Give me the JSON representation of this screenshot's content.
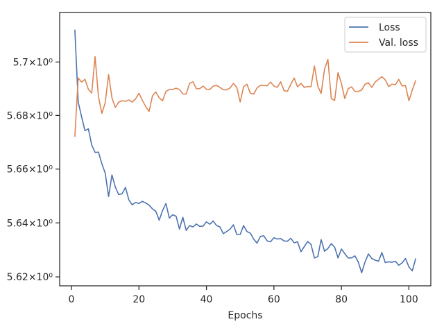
{
  "chart_data": {
    "type": "line",
    "title": "",
    "xlabel": "Epochs",
    "ylabel": "",
    "xlim": [
      -3.5,
      106.5
    ],
    "ylim": [
      5.6167,
      5.7186
    ],
    "yscale": "log",
    "grid": false,
    "legend_position": "top-right",
    "x_ticks": [
      0,
      20,
      40,
      60,
      80,
      100
    ],
    "x_tick_labels": [
      "0",
      "20",
      "40",
      "60",
      "80",
      "100"
    ],
    "y_ticks": [
      5.62,
      5.64,
      5.66,
      5.68,
      5.7
    ],
    "y_tick_labels": [
      "5.62×10⁰",
      "5.64×10⁰",
      "5.66×10⁰",
      "5.68×10⁰",
      "5.7×10⁰"
    ],
    "series": [
      {
        "name": "Loss",
        "color": "#4c72b0",
        "values": [
          5.712,
          5.685,
          5.6795,
          5.6743,
          5.675,
          5.669,
          5.6662,
          5.6663,
          5.662,
          5.6585,
          5.6498,
          5.6578,
          5.6533,
          5.6505,
          5.6508,
          5.6532,
          5.6486,
          5.6467,
          5.6476,
          5.6472,
          5.648,
          5.6474,
          5.6466,
          5.6452,
          5.6443,
          5.641,
          5.6446,
          5.6472,
          5.6418,
          5.643,
          5.6425,
          5.6377,
          5.6421,
          5.6372,
          5.639,
          5.6385,
          5.6396,
          5.6387,
          5.6388,
          5.6404,
          5.6395,
          5.6407,
          5.639,
          5.6385,
          5.636,
          5.6368,
          5.6377,
          5.6393,
          5.6357,
          5.6357,
          5.639,
          5.6368,
          5.6362,
          5.634,
          5.6325,
          5.635,
          5.6352,
          5.6333,
          5.633,
          5.6345,
          5.634,
          5.6342,
          5.6333,
          5.6332,
          5.6343,
          5.6326,
          5.633,
          5.6293,
          5.6312,
          5.6331,
          5.632,
          5.627,
          5.6275,
          5.6338,
          5.6295,
          5.6305,
          5.6323,
          5.631,
          5.627,
          5.6303,
          5.6286,
          5.627,
          5.627,
          5.6278,
          5.6255,
          5.6215,
          5.6255,
          5.6285,
          5.6268,
          5.6262,
          5.6258,
          5.629,
          5.6253,
          5.6256,
          5.6254,
          5.6258,
          5.6243,
          5.6252,
          5.6268,
          5.6237,
          5.6222,
          5.6267
        ]
      },
      {
        "name": "Val. loss",
        "color": "#dd8452",
        "values": [
          5.6722,
          5.694,
          5.6925,
          5.6935,
          5.6898,
          5.6884,
          5.702,
          5.687,
          5.6808,
          5.6847,
          5.6953,
          5.6866,
          5.683,
          5.685,
          5.6855,
          5.6853,
          5.6858,
          5.685,
          5.6862,
          5.6883,
          5.6857,
          5.6833,
          5.6815,
          5.6873,
          5.6888,
          5.6866,
          5.6855,
          5.689,
          5.6897,
          5.6897,
          5.6902,
          5.6897,
          5.688,
          5.688,
          5.692,
          5.6926,
          5.69,
          5.69,
          5.691,
          5.6898,
          5.6897,
          5.691,
          5.6912,
          5.6905,
          5.6896,
          5.6896,
          5.6903,
          5.692,
          5.6905,
          5.685,
          5.6907,
          5.6917,
          5.6883,
          5.688,
          5.6903,
          5.6913,
          5.6912,
          5.6911,
          5.6925,
          5.691,
          5.6905,
          5.6926,
          5.6893,
          5.689,
          5.6917,
          5.694,
          5.6907,
          5.692,
          5.6905,
          5.6908,
          5.6908,
          5.6985,
          5.691,
          5.6882,
          5.6973,
          5.701,
          5.6863,
          5.6856,
          5.696,
          5.692,
          5.6863,
          5.69,
          5.6907,
          5.689,
          5.689,
          5.6895,
          5.6917,
          5.6922,
          5.6905,
          5.6925,
          5.6935,
          5.6945,
          5.6933,
          5.6908,
          5.6917,
          5.6915,
          5.6935,
          5.691,
          5.6912,
          5.6855,
          5.6895,
          5.693
        ]
      }
    ]
  }
}
